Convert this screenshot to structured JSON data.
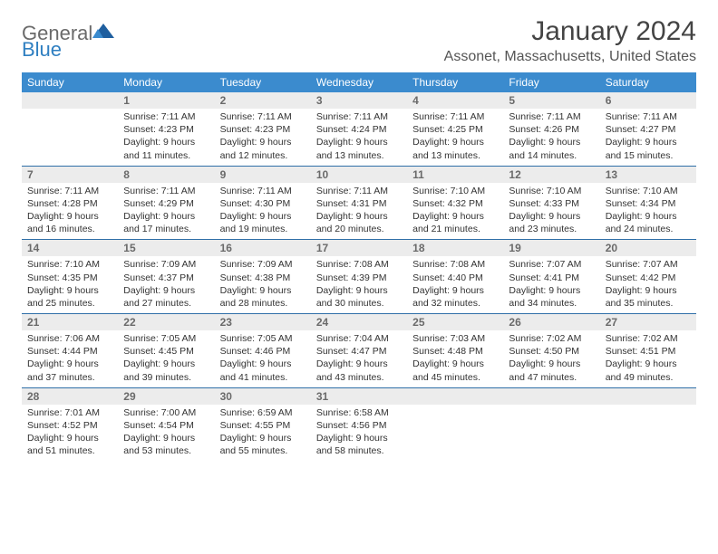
{
  "brand": {
    "name_gray": "General",
    "name_blue": "Blue"
  },
  "title": "January 2024",
  "location": "Assonet, Massachusetts, United States",
  "theme": {
    "header_bg": "#3b8bce",
    "header_text": "#ffffff",
    "daynum_bg": "#ececec",
    "daynum_text": "#6a6a6a",
    "border_color": "#2f6fa8",
    "body_text": "#333333"
  },
  "weekdays": [
    "Sunday",
    "Monday",
    "Tuesday",
    "Wednesday",
    "Thursday",
    "Friday",
    "Saturday"
  ],
  "weeks": [
    [
      {
        "n": "",
        "lines": []
      },
      {
        "n": "1",
        "lines": [
          "Sunrise: 7:11 AM",
          "Sunset: 4:23 PM",
          "Daylight: 9 hours",
          "and 11 minutes."
        ]
      },
      {
        "n": "2",
        "lines": [
          "Sunrise: 7:11 AM",
          "Sunset: 4:23 PM",
          "Daylight: 9 hours",
          "and 12 minutes."
        ]
      },
      {
        "n": "3",
        "lines": [
          "Sunrise: 7:11 AM",
          "Sunset: 4:24 PM",
          "Daylight: 9 hours",
          "and 13 minutes."
        ]
      },
      {
        "n": "4",
        "lines": [
          "Sunrise: 7:11 AM",
          "Sunset: 4:25 PM",
          "Daylight: 9 hours",
          "and 13 minutes."
        ]
      },
      {
        "n": "5",
        "lines": [
          "Sunrise: 7:11 AM",
          "Sunset: 4:26 PM",
          "Daylight: 9 hours",
          "and 14 minutes."
        ]
      },
      {
        "n": "6",
        "lines": [
          "Sunrise: 7:11 AM",
          "Sunset: 4:27 PM",
          "Daylight: 9 hours",
          "and 15 minutes."
        ]
      }
    ],
    [
      {
        "n": "7",
        "lines": [
          "Sunrise: 7:11 AM",
          "Sunset: 4:28 PM",
          "Daylight: 9 hours",
          "and 16 minutes."
        ]
      },
      {
        "n": "8",
        "lines": [
          "Sunrise: 7:11 AM",
          "Sunset: 4:29 PM",
          "Daylight: 9 hours",
          "and 17 minutes."
        ]
      },
      {
        "n": "9",
        "lines": [
          "Sunrise: 7:11 AM",
          "Sunset: 4:30 PM",
          "Daylight: 9 hours",
          "and 19 minutes."
        ]
      },
      {
        "n": "10",
        "lines": [
          "Sunrise: 7:11 AM",
          "Sunset: 4:31 PM",
          "Daylight: 9 hours",
          "and 20 minutes."
        ]
      },
      {
        "n": "11",
        "lines": [
          "Sunrise: 7:10 AM",
          "Sunset: 4:32 PM",
          "Daylight: 9 hours",
          "and 21 minutes."
        ]
      },
      {
        "n": "12",
        "lines": [
          "Sunrise: 7:10 AM",
          "Sunset: 4:33 PM",
          "Daylight: 9 hours",
          "and 23 minutes."
        ]
      },
      {
        "n": "13",
        "lines": [
          "Sunrise: 7:10 AM",
          "Sunset: 4:34 PM",
          "Daylight: 9 hours",
          "and 24 minutes."
        ]
      }
    ],
    [
      {
        "n": "14",
        "lines": [
          "Sunrise: 7:10 AM",
          "Sunset: 4:35 PM",
          "Daylight: 9 hours",
          "and 25 minutes."
        ]
      },
      {
        "n": "15",
        "lines": [
          "Sunrise: 7:09 AM",
          "Sunset: 4:37 PM",
          "Daylight: 9 hours",
          "and 27 minutes."
        ]
      },
      {
        "n": "16",
        "lines": [
          "Sunrise: 7:09 AM",
          "Sunset: 4:38 PM",
          "Daylight: 9 hours",
          "and 28 minutes."
        ]
      },
      {
        "n": "17",
        "lines": [
          "Sunrise: 7:08 AM",
          "Sunset: 4:39 PM",
          "Daylight: 9 hours",
          "and 30 minutes."
        ]
      },
      {
        "n": "18",
        "lines": [
          "Sunrise: 7:08 AM",
          "Sunset: 4:40 PM",
          "Daylight: 9 hours",
          "and 32 minutes."
        ]
      },
      {
        "n": "19",
        "lines": [
          "Sunrise: 7:07 AM",
          "Sunset: 4:41 PM",
          "Daylight: 9 hours",
          "and 34 minutes."
        ]
      },
      {
        "n": "20",
        "lines": [
          "Sunrise: 7:07 AM",
          "Sunset: 4:42 PM",
          "Daylight: 9 hours",
          "and 35 minutes."
        ]
      }
    ],
    [
      {
        "n": "21",
        "lines": [
          "Sunrise: 7:06 AM",
          "Sunset: 4:44 PM",
          "Daylight: 9 hours",
          "and 37 minutes."
        ]
      },
      {
        "n": "22",
        "lines": [
          "Sunrise: 7:05 AM",
          "Sunset: 4:45 PM",
          "Daylight: 9 hours",
          "and 39 minutes."
        ]
      },
      {
        "n": "23",
        "lines": [
          "Sunrise: 7:05 AM",
          "Sunset: 4:46 PM",
          "Daylight: 9 hours",
          "and 41 minutes."
        ]
      },
      {
        "n": "24",
        "lines": [
          "Sunrise: 7:04 AM",
          "Sunset: 4:47 PM",
          "Daylight: 9 hours",
          "and 43 minutes."
        ]
      },
      {
        "n": "25",
        "lines": [
          "Sunrise: 7:03 AM",
          "Sunset: 4:48 PM",
          "Daylight: 9 hours",
          "and 45 minutes."
        ]
      },
      {
        "n": "26",
        "lines": [
          "Sunrise: 7:02 AM",
          "Sunset: 4:50 PM",
          "Daylight: 9 hours",
          "and 47 minutes."
        ]
      },
      {
        "n": "27",
        "lines": [
          "Sunrise: 7:02 AM",
          "Sunset: 4:51 PM",
          "Daylight: 9 hours",
          "and 49 minutes."
        ]
      }
    ],
    [
      {
        "n": "28",
        "lines": [
          "Sunrise: 7:01 AM",
          "Sunset: 4:52 PM",
          "Daylight: 9 hours",
          "and 51 minutes."
        ]
      },
      {
        "n": "29",
        "lines": [
          "Sunrise: 7:00 AM",
          "Sunset: 4:54 PM",
          "Daylight: 9 hours",
          "and 53 minutes."
        ]
      },
      {
        "n": "30",
        "lines": [
          "Sunrise: 6:59 AM",
          "Sunset: 4:55 PM",
          "Daylight: 9 hours",
          "and 55 minutes."
        ]
      },
      {
        "n": "31",
        "lines": [
          "Sunrise: 6:58 AM",
          "Sunset: 4:56 PM",
          "Daylight: 9 hours",
          "and 58 minutes."
        ]
      },
      {
        "n": "",
        "lines": []
      },
      {
        "n": "",
        "lines": []
      },
      {
        "n": "",
        "lines": []
      }
    ]
  ]
}
